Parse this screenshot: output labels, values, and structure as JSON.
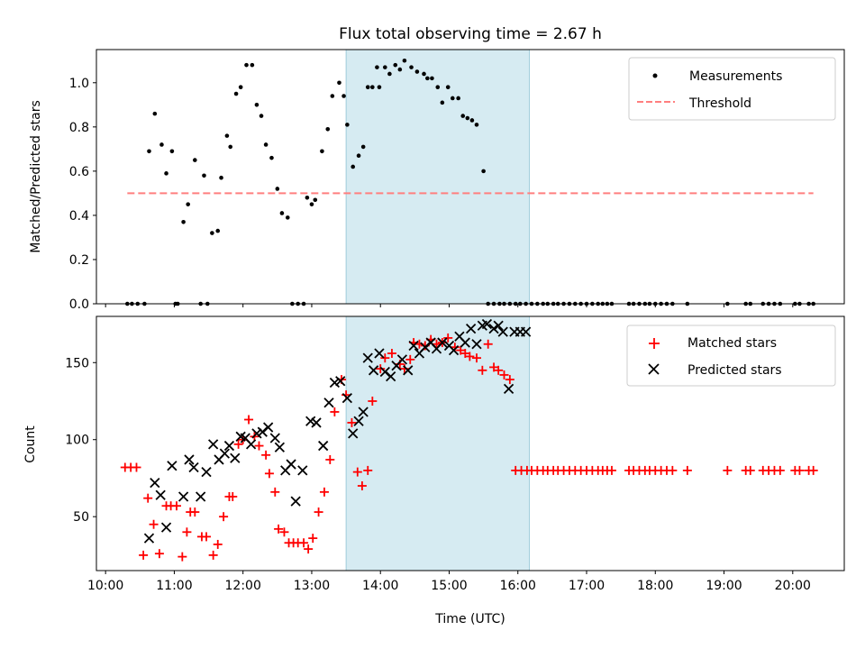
{
  "chart_data": [
    {
      "type": "scatter",
      "title": "Flux total observing time = 2.67 h",
      "xlabel": "",
      "ylabel": "Matched/Predicted stars",
      "ylim": [
        0,
        1.15
      ],
      "yticks": [
        "0.0",
        "0.2",
        "0.4",
        "0.6",
        "0.8",
        "1.0"
      ],
      "ytick_values": [
        0,
        0.2,
        0.4,
        0.6,
        0.8,
        1.0
      ],
      "highlight_span": [
        "13:30",
        "16:10"
      ],
      "highlight_color": "#add8e6",
      "legend": {
        "placement": "upper right",
        "entries": [
          "Measurements",
          "Threshold"
        ]
      },
      "series": [
        {
          "name": "Measurements",
          "marker": "dot",
          "color": "#000000",
          "x": [
            "10:19",
            "10:23",
            "10:28",
            "10:34",
            "10:38",
            "10:43",
            "10:49",
            "10:53",
            "10:58",
            "11:01",
            "11:03",
            "11:08",
            "11:12",
            "11:18",
            "11:23",
            "11:26",
            "11:29",
            "11:33",
            "11:38",
            "11:41",
            "11:46",
            "11:49",
            "11:54",
            "11:58",
            "12:03",
            "12:08",
            "12:12",
            "12:16",
            "12:20",
            "12:25",
            "12:30",
            "12:34",
            "12:39",
            "12:43",
            "12:48",
            "12:53",
            "12:56",
            "13:00",
            "13:03",
            "13:09",
            "13:14",
            "13:18",
            "13:24",
            "13:28",
            "13:31",
            "13:36",
            "13:41",
            "13:45",
            "13:49",
            "13:53",
            "13:57",
            "13:59",
            "14:04",
            "14:08",
            "14:13",
            "14:17",
            "14:21",
            "14:27",
            "14:32",
            "14:38",
            "14:41",
            "14:45",
            "14:50",
            "14:54",
            "14:59",
            "15:03",
            "15:08",
            "15:12",
            "15:16",
            "15:20",
            "15:24",
            "15:30",
            "15:34",
            "15:39",
            "15:44",
            "15:48",
            "15:53",
            "15:58",
            "16:02",
            "16:07",
            "16:12",
            "16:17",
            "16:22",
            "16:26",
            "16:31",
            "16:35",
            "16:40",
            "16:45",
            "16:50",
            "16:55",
            "17:00",
            "17:05",
            "17:10",
            "17:14",
            "17:18",
            "17:22",
            "17:37",
            "17:41",
            "17:46",
            "17:51",
            "17:55",
            "18:00",
            "18:05",
            "18:10",
            "18:15",
            "18:28",
            "19:03",
            "19:19",
            "19:23",
            "19:34",
            "19:39",
            "19:44",
            "19:49",
            "20:02",
            "20:06",
            "20:14",
            "20:18"
          ],
          "y": [
            0,
            0,
            0,
            0,
            0.69,
            0.86,
            0.72,
            0.59,
            0.69,
            0,
            0,
            0.37,
            0.45,
            0.65,
            0,
            0.58,
            0,
            0.32,
            0.33,
            0.57,
            0.76,
            0.71,
            0.95,
            0.98,
            1.08,
            1.08,
            0.9,
            0.85,
            0.72,
            0.66,
            0.52,
            0.41,
            0.39,
            0,
            0,
            0,
            0.48,
            0.45,
            0.47,
            0.69,
            0.79,
            0.94,
            1.0,
            0.94,
            0.81,
            0.62,
            0.67,
            0.71,
            0.98,
            0.98,
            1.07,
            0.98,
            1.07,
            1.04,
            1.08,
            1.06,
            1.1,
            1.07,
            1.05,
            1.04,
            1.02,
            1.02,
            0.98,
            0.91,
            0.98,
            0.93,
            0.93,
            0.85,
            0.84,
            0.83,
            0.81,
            0.6,
            0,
            0,
            0,
            0,
            0,
            0,
            0,
            0,
            0,
            0,
            0,
            0,
            0,
            0,
            0,
            0,
            0,
            0,
            0,
            0,
            0,
            0,
            0,
            0,
            0,
            0,
            0,
            0,
            0,
            0,
            0,
            0,
            0,
            0,
            0,
            0,
            0,
            0,
            0,
            0,
            0,
            0,
            0,
            0,
            0
          ]
        },
        {
          "name": "Threshold",
          "style": "dashed",
          "color": "#ff7f7f",
          "x": [
            "10:19",
            "20:18"
          ],
          "y": [
            0.5,
            0.5
          ]
        }
      ]
    },
    {
      "type": "scatter",
      "title": "",
      "xlabel": "Time (UTC)",
      "ylabel": "Count",
      "ylim": [
        15,
        180
      ],
      "yticks": [
        "50",
        "100",
        "150"
      ],
      "ytick_values": [
        50,
        100,
        150
      ],
      "xlim": [
        "09:52",
        "20:45"
      ],
      "xticks": [
        "10:00",
        "11:00",
        "12:00",
        "13:00",
        "14:00",
        "15:00",
        "16:00",
        "17:00",
        "18:00",
        "19:00",
        "20:00"
      ],
      "highlight_span": [
        "13:30",
        "16:10"
      ],
      "highlight_color": "#add8e6",
      "legend": {
        "placement": "upper right",
        "entries": [
          "Matched stars",
          "Predicted stars"
        ]
      },
      "series": [
        {
          "name": "Matched stars",
          "marker": "plus",
          "color": "#ff0000",
          "x": [
            "10:17",
            "10:22",
            "10:27",
            "10:33",
            "10:37",
            "10:42",
            "10:47",
            "10:53",
            "10:57",
            "11:02",
            "11:07",
            "11:11",
            "11:14",
            "11:18",
            "11:24",
            "11:28",
            "11:34",
            "11:38",
            "11:43",
            "11:48",
            "11:51",
            "11:56",
            "12:00",
            "12:05",
            "12:10",
            "12:14",
            "12:20",
            "12:23",
            "12:28",
            "12:31",
            "12:36",
            "12:40",
            "12:44",
            "12:48",
            "12:53",
            "12:57",
            "13:01",
            "13:06",
            "13:11",
            "13:16",
            "13:20",
            "13:26",
            "13:30",
            "13:35",
            "13:40",
            "13:44",
            "13:49",
            "13:53",
            "14:00",
            "14:04",
            "14:10",
            "14:17",
            "14:21",
            "14:26",
            "14:29",
            "14:34",
            "14:39",
            "14:44",
            "14:49",
            "14:54",
            "14:59",
            "15:05",
            "15:10",
            "15:14",
            "15:18",
            "15:24",
            "15:29",
            "15:34",
            "15:39",
            "15:43",
            "15:48",
            "15:53",
            "15:58",
            "16:03",
            "16:08",
            "16:12",
            "16:17",
            "16:22",
            "16:26",
            "16:31",
            "16:35",
            "16:40",
            "16:45",
            "16:50",
            "16:55",
            "17:00",
            "17:05",
            "17:10",
            "17:14",
            "17:18",
            "17:22",
            "17:37",
            "17:41",
            "17:46",
            "17:51",
            "17:55",
            "18:00",
            "18:05",
            "18:10",
            "18:15",
            "18:28",
            "19:03",
            "19:19",
            "19:23",
            "19:34",
            "19:39",
            "19:44",
            "19:49",
            "20:02",
            "20:06",
            "20:14",
            "20:18"
          ],
          "y": [
            82,
            82,
            82,
            25,
            62,
            45,
            26,
            57,
            57,
            57,
            24,
            40,
            53,
            53,
            37,
            37,
            25,
            32,
            50,
            63,
            63,
            97,
            100,
            113,
            102,
            96,
            90,
            78,
            66,
            42,
            40,
            33,
            33,
            33,
            33,
            29,
            36,
            53,
            66,
            87,
            118,
            139,
            129,
            111,
            79,
            70,
            80,
            125,
            146,
            153,
            156,
            149,
            146,
            152,
            163,
            162,
            161,
            165,
            162,
            163,
            166,
            160,
            158,
            156,
            154,
            153,
            145,
            162,
            147,
            145,
            142,
            139,
            80,
            80,
            80,
            80,
            80,
            80,
            80,
            80,
            80,
            80,
            80,
            80,
            80,
            80,
            80,
            80,
            80,
            80,
            80,
            80,
            80,
            80,
            80,
            80,
            80,
            80,
            80,
            80,
            80,
            80,
            80,
            80,
            80,
            80,
            80,
            80,
            80,
            80,
            80,
            80
          ]
        },
        {
          "name": "Predicted stars",
          "marker": "x",
          "color": "#000000",
          "x": [
            "10:38",
            "10:43",
            "10:48",
            "10:53",
            "10:58",
            "11:08",
            "11:13",
            "11:17",
            "11:23",
            "11:28",
            "11:34",
            "11:39",
            "11:44",
            "11:48",
            "11:53",
            "11:58",
            "12:02",
            "12:07",
            "12:12",
            "12:17",
            "12:22",
            "12:28",
            "12:32",
            "12:37",
            "12:42",
            "12:46",
            "12:52",
            "12:59",
            "13:04",
            "13:10",
            "13:15",
            "13:20",
            "13:25",
            "13:31",
            "13:36",
            "13:41",
            "13:45",
            "13:49",
            "13:54",
            "13:59",
            "14:04",
            "14:09",
            "14:14",
            "14:19",
            "14:24",
            "14:29",
            "14:34",
            "14:39",
            "14:44",
            "14:49",
            "14:54",
            "15:00",
            "15:04",
            "15:09",
            "15:14",
            "15:19",
            "15:24",
            "15:29",
            "15:33",
            "15:39",
            "15:43",
            "15:47",
            "15:52",
            "15:57",
            "16:02",
            "16:07"
          ],
          "y": [
            36,
            72,
            64,
            43,
            83,
            63,
            87,
            82,
            63,
            79,
            97,
            87,
            91,
            96,
            88,
            102,
            101,
            97,
            104,
            105,
            108,
            101,
            95,
            80,
            84,
            60,
            80,
            112,
            111,
            96,
            124,
            137,
            138,
            127,
            104,
            112,
            118,
            153,
            145,
            156,
            144,
            141,
            148,
            152,
            145,
            161,
            156,
            160,
            163,
            159,
            163,
            161,
            158,
            167,
            163,
            172,
            162,
            174,
            175,
            172,
            174,
            170,
            133,
            170,
            170,
            170
          ]
        }
      ]
    }
  ]
}
